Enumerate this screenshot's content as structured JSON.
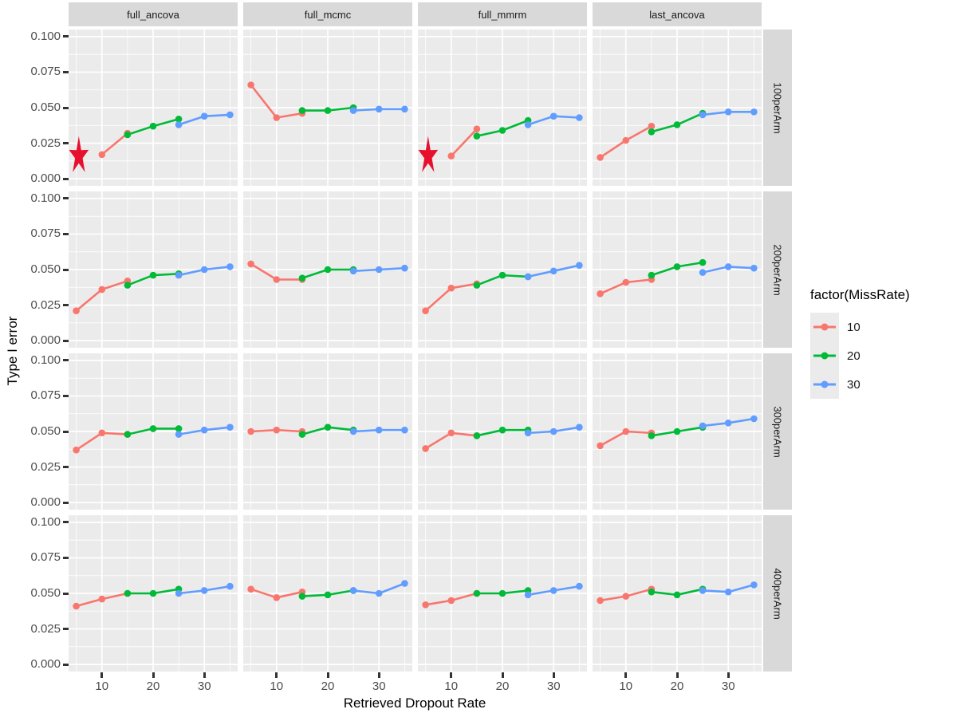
{
  "legend": {
    "title": "factor(MissRate)",
    "items": [
      {
        "label": "10",
        "color": "#F8766D"
      },
      {
        "label": "20",
        "color": "#00BA38"
      },
      {
        "label": "30",
        "color": "#619CFF"
      }
    ]
  },
  "chart_data": {
    "type": "line",
    "title": "",
    "xlabel": "Retrieved Dropout Rate",
    "ylabel": "Type I error",
    "xlim": [
      3.5,
      36.5
    ],
    "ylim": [
      -0.005,
      0.105
    ],
    "x_major_ticks": [
      10,
      20,
      30
    ],
    "x_minor_ticks": [
      5,
      15,
      25,
      35
    ],
    "y_major_ticks": [
      0.1,
      0.075,
      0.05,
      0.025,
      0.0
    ],
    "y_minor_ticks": [
      0.0875,
      0.0625,
      0.0375,
      0.0125
    ],
    "y_tick_labels": [
      "0.100",
      "0.075",
      "0.050",
      "0.025",
      "0.000"
    ],
    "x_tick_labels": [
      "10",
      "20",
      "30"
    ],
    "grid": "on",
    "legend_position": "right",
    "panel_background": "#EBEBEB",
    "strip_background": "#D9D9D9",
    "annotation_color": "#E8112D",
    "colors": {
      "10": "#F8766D",
      "20": "#00BA38",
      "30": "#619CFF"
    },
    "col_facets": [
      "full_ancova",
      "full_mcmc",
      "full_mmrm",
      "last_ancova"
    ],
    "row_facets": [
      "100perArm",
      "200perArm",
      "300perArm",
      "400perArm"
    ],
    "facets": [
      {
        "method": "full_ancova",
        "arm": "100perArm",
        "series": [
          {
            "missrate": "10",
            "x": [
              10,
              15
            ],
            "y": [
              0.017,
              0.032
            ]
          },
          {
            "missrate": "20",
            "x": [
              15,
              20,
              25
            ],
            "y": [
              0.031,
              0.037,
              0.042
            ]
          },
          {
            "missrate": "30",
            "x": [
              25,
              30,
              35
            ],
            "y": [
              0.038,
              0.044,
              0.045
            ]
          }
        ],
        "stars": [
          {
            "x": 5.5,
            "y": 0.016
          }
        ]
      },
      {
        "method": "full_mcmc",
        "arm": "100perArm",
        "series": [
          {
            "missrate": "10",
            "x": [
              5,
              10,
              15
            ],
            "y": [
              0.066,
              0.043,
              0.046
            ]
          },
          {
            "missrate": "20",
            "x": [
              15,
              20,
              25
            ],
            "y": [
              0.048,
              0.048,
              0.05
            ]
          },
          {
            "missrate": "30",
            "x": [
              25,
              30,
              35
            ],
            "y": [
              0.048,
              0.049,
              0.049
            ]
          }
        ],
        "stars": []
      },
      {
        "method": "full_mmrm",
        "arm": "100perArm",
        "series": [
          {
            "missrate": "10",
            "x": [
              10,
              15
            ],
            "y": [
              0.016,
              0.035
            ]
          },
          {
            "missrate": "20",
            "x": [
              15,
              20,
              25
            ],
            "y": [
              0.03,
              0.034,
              0.041
            ]
          },
          {
            "missrate": "30",
            "x": [
              25,
              30,
              35
            ],
            "y": [
              0.038,
              0.044,
              0.043
            ]
          }
        ],
        "stars": [
          {
            "x": 5.5,
            "y": 0.016
          }
        ]
      },
      {
        "method": "last_ancova",
        "arm": "100perArm",
        "series": [
          {
            "missrate": "10",
            "x": [
              5,
              10,
              15
            ],
            "y": [
              0.015,
              0.027,
              0.037
            ]
          },
          {
            "missrate": "20",
            "x": [
              15,
              20,
              25
            ],
            "y": [
              0.033,
              0.038,
              0.046
            ]
          },
          {
            "missrate": "30",
            "x": [
              25,
              30,
              35
            ],
            "y": [
              0.045,
              0.047,
              0.047
            ]
          }
        ],
        "stars": []
      },
      {
        "method": "full_ancova",
        "arm": "200perArm",
        "series": [
          {
            "missrate": "10",
            "x": [
              5,
              10,
              15
            ],
            "y": [
              0.021,
              0.036,
              0.042
            ]
          },
          {
            "missrate": "20",
            "x": [
              15,
              20,
              25
            ],
            "y": [
              0.039,
              0.046,
              0.047
            ]
          },
          {
            "missrate": "30",
            "x": [
              25,
              30,
              35
            ],
            "y": [
              0.046,
              0.05,
              0.052
            ]
          }
        ],
        "stars": []
      },
      {
        "method": "full_mcmc",
        "arm": "200perArm",
        "series": [
          {
            "missrate": "10",
            "x": [
              5,
              10,
              15
            ],
            "y": [
              0.054,
              0.043,
              0.043
            ]
          },
          {
            "missrate": "20",
            "x": [
              15,
              20,
              25
            ],
            "y": [
              0.044,
              0.05,
              0.05
            ]
          },
          {
            "missrate": "30",
            "x": [
              25,
              30,
              35
            ],
            "y": [
              0.049,
              0.05,
              0.051
            ]
          }
        ],
        "stars": []
      },
      {
        "method": "full_mmrm",
        "arm": "200perArm",
        "series": [
          {
            "missrate": "10",
            "x": [
              5,
              10,
              15
            ],
            "y": [
              0.021,
              0.037,
              0.04
            ]
          },
          {
            "missrate": "20",
            "x": [
              15,
              20,
              25
            ],
            "y": [
              0.039,
              0.046,
              0.045
            ]
          },
          {
            "missrate": "30",
            "x": [
              25,
              30,
              35
            ],
            "y": [
              0.045,
              0.049,
              0.053
            ]
          }
        ],
        "stars": []
      },
      {
        "method": "last_ancova",
        "arm": "200perArm",
        "series": [
          {
            "missrate": "10",
            "x": [
              5,
              10,
              15
            ],
            "y": [
              0.033,
              0.041,
              0.043
            ]
          },
          {
            "missrate": "20",
            "x": [
              15,
              20,
              25
            ],
            "y": [
              0.046,
              0.052,
              0.055
            ]
          },
          {
            "missrate": "30",
            "x": [
              25,
              30,
              35
            ],
            "y": [
              0.048,
              0.052,
              0.051
            ]
          }
        ],
        "stars": []
      },
      {
        "method": "full_ancova",
        "arm": "300perArm",
        "series": [
          {
            "missrate": "10",
            "x": [
              5,
              10,
              15
            ],
            "y": [
              0.037,
              0.049,
              0.048
            ]
          },
          {
            "missrate": "20",
            "x": [
              15,
              20,
              25
            ],
            "y": [
              0.048,
              0.052,
              0.052
            ]
          },
          {
            "missrate": "30",
            "x": [
              25,
              30,
              35
            ],
            "y": [
              0.048,
              0.051,
              0.053
            ]
          }
        ],
        "stars": []
      },
      {
        "method": "full_mcmc",
        "arm": "300perArm",
        "series": [
          {
            "missrate": "10",
            "x": [
              5,
              10,
              15
            ],
            "y": [
              0.05,
              0.051,
              0.05
            ]
          },
          {
            "missrate": "20",
            "x": [
              15,
              20,
              25
            ],
            "y": [
              0.048,
              0.053,
              0.051
            ]
          },
          {
            "missrate": "30",
            "x": [
              25,
              30,
              35
            ],
            "y": [
              0.05,
              0.051,
              0.051
            ]
          }
        ],
        "stars": []
      },
      {
        "method": "full_mmrm",
        "arm": "300perArm",
        "series": [
          {
            "missrate": "10",
            "x": [
              5,
              10,
              15
            ],
            "y": [
              0.038,
              0.049,
              0.047
            ]
          },
          {
            "missrate": "20",
            "x": [
              15,
              20,
              25
            ],
            "y": [
              0.047,
              0.051,
              0.051
            ]
          },
          {
            "missrate": "30",
            "x": [
              25,
              30,
              35
            ],
            "y": [
              0.049,
              0.05,
              0.053
            ]
          }
        ],
        "stars": []
      },
      {
        "method": "last_ancova",
        "arm": "300perArm",
        "series": [
          {
            "missrate": "10",
            "x": [
              5,
              10,
              15
            ],
            "y": [
              0.04,
              0.05,
              0.049
            ]
          },
          {
            "missrate": "20",
            "x": [
              15,
              20,
              25
            ],
            "y": [
              0.047,
              0.05,
              0.053
            ]
          },
          {
            "missrate": "30",
            "x": [
              25,
              30,
              35
            ],
            "y": [
              0.054,
              0.056,
              0.059
            ]
          }
        ],
        "stars": []
      },
      {
        "method": "full_ancova",
        "arm": "400perArm",
        "series": [
          {
            "missrate": "10",
            "x": [
              5,
              10,
              15
            ],
            "y": [
              0.041,
              0.046,
              0.05
            ]
          },
          {
            "missrate": "20",
            "x": [
              15,
              20,
              25
            ],
            "y": [
              0.05,
              0.05,
              0.053
            ]
          },
          {
            "missrate": "30",
            "x": [
              25,
              30,
              35
            ],
            "y": [
              0.05,
              0.052,
              0.055
            ]
          }
        ],
        "stars": []
      },
      {
        "method": "full_mcmc",
        "arm": "400perArm",
        "series": [
          {
            "missrate": "10",
            "x": [
              5,
              10,
              15
            ],
            "y": [
              0.053,
              0.047,
              0.051
            ]
          },
          {
            "missrate": "20",
            "x": [
              15,
              20,
              25
            ],
            "y": [
              0.048,
              0.049,
              0.052
            ]
          },
          {
            "missrate": "30",
            "x": [
              25,
              30,
              35
            ],
            "y": [
              0.052,
              0.05,
              0.057
            ]
          }
        ],
        "stars": []
      },
      {
        "method": "full_mmrm",
        "arm": "400perArm",
        "series": [
          {
            "missrate": "10",
            "x": [
              5,
              10,
              15
            ],
            "y": [
              0.042,
              0.045,
              0.05
            ]
          },
          {
            "missrate": "20",
            "x": [
              15,
              20,
              25
            ],
            "y": [
              0.05,
              0.05,
              0.052
            ]
          },
          {
            "missrate": "30",
            "x": [
              25,
              30,
              35
            ],
            "y": [
              0.049,
              0.052,
              0.055
            ]
          }
        ],
        "stars": []
      },
      {
        "method": "last_ancova",
        "arm": "400perArm",
        "series": [
          {
            "missrate": "10",
            "x": [
              5,
              10,
              15
            ],
            "y": [
              0.045,
              0.048,
              0.053
            ]
          },
          {
            "missrate": "20",
            "x": [
              15,
              20,
              25
            ],
            "y": [
              0.051,
              0.049,
              0.053
            ]
          },
          {
            "missrate": "30",
            "x": [
              25,
              30,
              35
            ],
            "y": [
              0.052,
              0.051,
              0.056
            ]
          }
        ],
        "stars": []
      }
    ]
  }
}
